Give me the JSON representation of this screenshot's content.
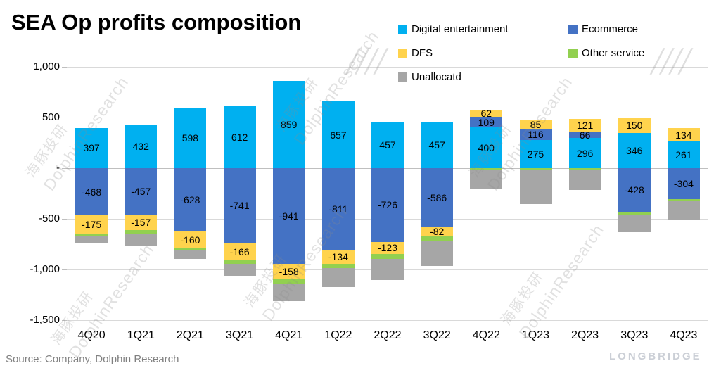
{
  "title": "SEA Op profits composition",
  "source": "Source: Company, Dolphin Research",
  "watermark": {
    "cn": "海豚投研",
    "en": "DolphinResearch",
    "slashes": "╱╱╱╱",
    "brand": "LONGBRIDGE"
  },
  "chart_data": {
    "type": "bar",
    "stacked": true,
    "title": "SEA Op profits composition",
    "xlabel": "",
    "ylabel": "",
    "grid": true,
    "legend_position": "top-right",
    "categories": [
      "4Q20",
      "1Q21",
      "2Q21",
      "3Q21",
      "4Q21",
      "1Q22",
      "2Q22",
      "3Q22",
      "4Q22",
      "1Q23",
      "2Q23",
      "3Q23",
      "4Q23"
    ],
    "series": [
      {
        "name": "Digital entertainment",
        "color": "#00B0F0",
        "show_labels": true,
        "values": [
          397,
          432,
          598,
          612,
          859,
          657,
          457,
          457,
          400,
          275,
          296,
          346,
          261
        ]
      },
      {
        "name": "Ecommerce",
        "color": "#4472C4",
        "show_labels": true,
        "values": [
          -468,
          -457,
          -628,
          -741,
          -941,
          -811,
          -726,
          -586,
          109,
          116,
          66,
          -428,
          -304
        ]
      },
      {
        "name": "DFS",
        "color": "#FFD34D",
        "show_labels": true,
        "values": [
          -175,
          -157,
          -160,
          -166,
          -158,
          -134,
          -123,
          -82,
          62,
          85,
          121,
          150,
          134
        ]
      },
      {
        "name": "Other service",
        "color": "#92D050",
        "show_labels": false,
        "values": [
          -30,
          -30,
          -15,
          -35,
          -45,
          -40,
          -45,
          -45,
          -20,
          -15,
          -12,
          -28,
          -18
        ]
      },
      {
        "name": "Unallocatd",
        "color": "#A6A6A6",
        "show_labels": false,
        "values": [
          -70,
          -130,
          -95,
          -120,
          -170,
          -190,
          -210,
          -250,
          -190,
          -340,
          -203,
          -178,
          -185
        ]
      }
    ],
    "ylim": [
      -1500,
      1000
    ],
    "yticks": [
      {
        "v": 1000,
        "label": "1,000"
      },
      {
        "v": 500,
        "label": "500"
      },
      {
        "v": 0,
        "label": "-"
      },
      {
        "v": -500,
        "label": "-500"
      },
      {
        "v": -1000,
        "label": "-1,000"
      },
      {
        "v": -1500,
        "label": "-1,500"
      }
    ]
  }
}
